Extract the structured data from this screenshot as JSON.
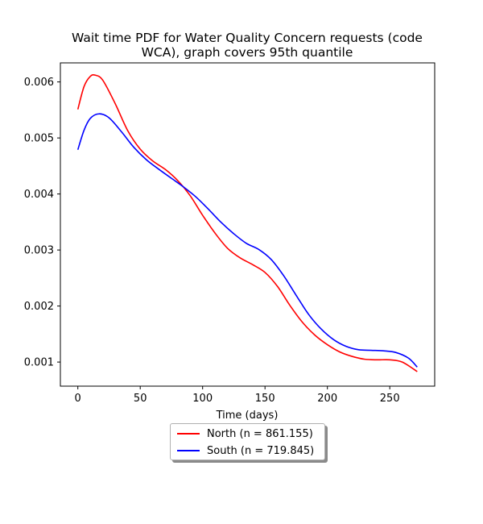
{
  "chart_data": {
    "type": "line",
    "title_lines": [
      "Wait time PDF for Water Quality Concern  requests (code",
      "WCA), graph covers 95th quantile"
    ],
    "xlabel": "Time (days)",
    "ylabel": "",
    "xlim": [
      -14,
      286
    ],
    "ylim": [
      0.00057,
      0.00634
    ],
    "xticks": [
      0,
      50,
      100,
      150,
      200,
      250
    ],
    "yticks": [
      0.001,
      0.002,
      0.003,
      0.004,
      0.005,
      0.006
    ],
    "ytick_labels": [
      "0.001",
      "0.002",
      "0.003",
      "0.004",
      "0.005",
      "0.006"
    ],
    "grid": false,
    "legend_placement": "below plot",
    "series": [
      {
        "name": "North (n = 861.155)",
        "color": "#ff0000",
        "x": [
          0,
          5,
          10,
          14,
          20,
          30,
          40,
          50,
          60,
          70,
          80,
          90,
          100,
          110,
          120,
          130,
          140,
          150,
          160,
          170,
          180,
          190,
          200,
          210,
          220,
          230,
          240,
          250,
          260,
          272
        ],
        "y": [
          0.00551,
          0.00592,
          0.0061,
          0.00612,
          0.00603,
          0.00561,
          0.00513,
          0.0048,
          0.00459,
          0.00444,
          0.00424,
          0.00397,
          0.00362,
          0.0033,
          0.00303,
          0.00286,
          0.00274,
          0.0026,
          0.00235,
          0.00201,
          0.00171,
          0.00148,
          0.00131,
          0.00118,
          0.0011,
          0.00105,
          0.00104,
          0.00104,
          0.001,
          0.00083
        ]
      },
      {
        "name": "South (n = 719.845)",
        "color": "#0000ff",
        "x": [
          0,
          5,
          10,
          17,
          25,
          35,
          45,
          55,
          65,
          75,
          85,
          95,
          105,
          115,
          125,
          135,
          145,
          155,
          165,
          175,
          185,
          195,
          205,
          215,
          225,
          235,
          245,
          255,
          265,
          272
        ],
        "y": [
          0.00479,
          0.00514,
          0.00535,
          0.00543,
          0.00536,
          0.00511,
          0.00483,
          0.00461,
          0.00444,
          0.00428,
          0.00412,
          0.00394,
          0.00372,
          0.00349,
          0.00329,
          0.00312,
          0.00301,
          0.00283,
          0.00254,
          0.00219,
          0.00185,
          0.00159,
          0.0014,
          0.00128,
          0.00122,
          0.00121,
          0.0012,
          0.00117,
          0.00107,
          0.00091
        ]
      }
    ]
  }
}
